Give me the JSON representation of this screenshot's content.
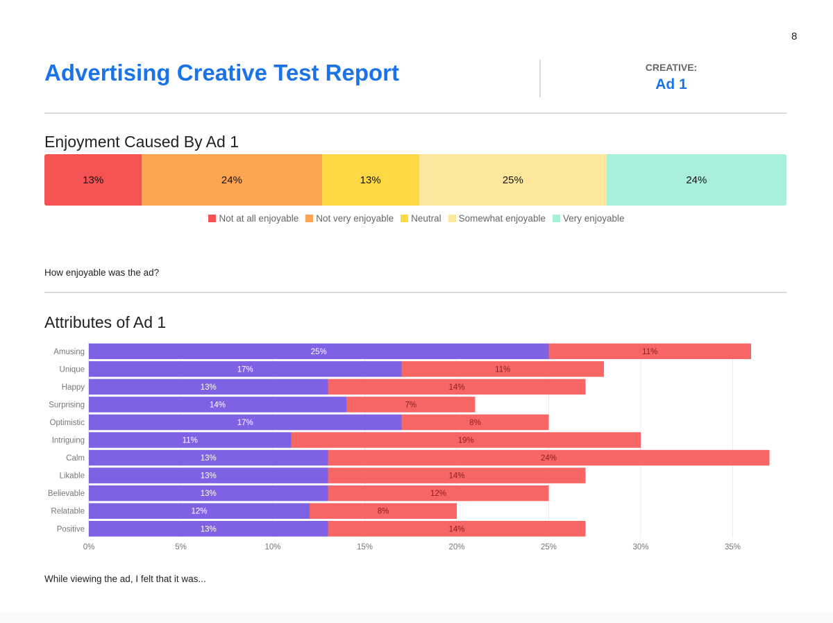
{
  "page_number": "8",
  "header": {
    "title": "Advertising Creative Test Report",
    "creative_label": "CREATIVE:",
    "creative_value": "Ad 1"
  },
  "enjoyment": {
    "title": "Enjoyment Caused By Ad 1",
    "question": "How enjoyable was the ad?",
    "segments": [
      {
        "label": "Not at all enjoyable",
        "value": 13,
        "display": "13%",
        "color": "#f55353"
      },
      {
        "label": "Not very enjoyable",
        "value": 24,
        "display": "24%",
        "color": "#ffa451"
      },
      {
        "label": "Neutral",
        "value": 13,
        "display": "13%",
        "color": "#ffd845"
      },
      {
        "label": "Somewhat enjoyable",
        "value": 25,
        "display": "25%",
        "color": "#ffe89e"
      },
      {
        "label": "Very enjoyable",
        "value": 24,
        "display": "24%",
        "color": "#a9efdc"
      }
    ]
  },
  "attributes": {
    "title": "Attributes of Ad 1",
    "question": "While viewing the ad, I felt that it was..."
  },
  "chart_data": [
    {
      "type": "bar",
      "orientation": "horizontal-stacked-100",
      "title": "Enjoyment Caused By Ad 1",
      "categories": [
        "Not at all enjoyable",
        "Not very enjoyable",
        "Neutral",
        "Somewhat enjoyable",
        "Very enjoyable"
      ],
      "values": [
        13,
        24,
        13,
        25,
        24
      ],
      "legend": "bottom"
    },
    {
      "type": "bar",
      "orientation": "horizontal-stacked",
      "title": "Attributes of Ad 1",
      "categories": [
        "Amusing",
        "Unique",
        "Happy",
        "Surprising",
        "Optimistic",
        "Intriguing",
        "Calm",
        "Likable",
        "Believable",
        "Relatable",
        "Positive"
      ],
      "series": [
        {
          "values": [
            25,
            17,
            13,
            14,
            17,
            11,
            13,
            13,
            13,
            12,
            13
          ],
          "color": "#7e62e3"
        },
        {
          "values": [
            11,
            11,
            14,
            7,
            8,
            19,
            24,
            14,
            12,
            8,
            14
          ],
          "color": "#f76565"
        }
      ],
      "xlim": [
        0,
        38
      ],
      "x_ticks": [
        "0%",
        "5%",
        "10%",
        "15%",
        "20%",
        "25%",
        "30%",
        "35%"
      ],
      "grid": true
    }
  ]
}
